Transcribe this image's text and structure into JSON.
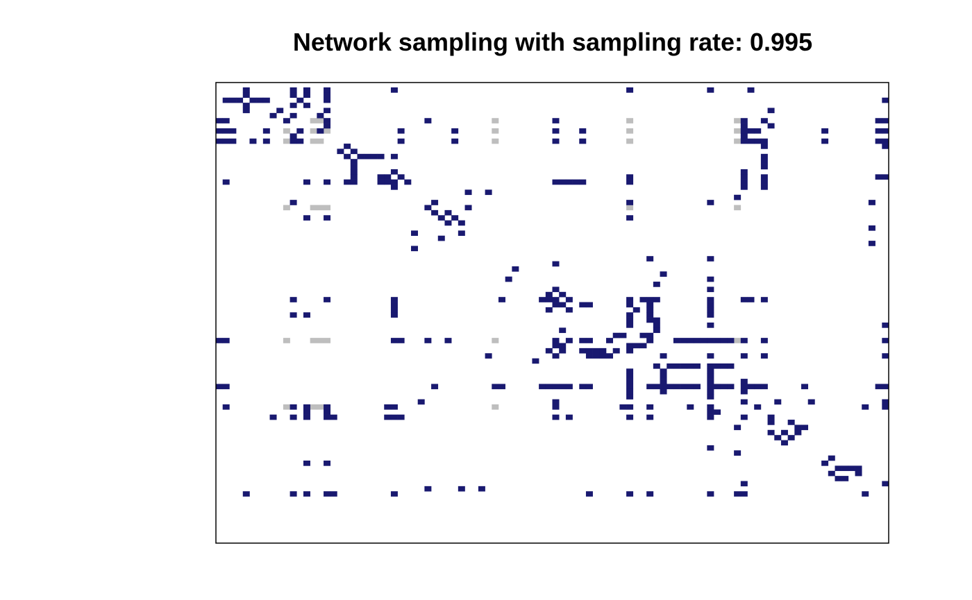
{
  "chart_data": {
    "type": "heatmap",
    "title": "Network sampling with sampling rate: 0.995",
    "xlabel": "",
    "ylabel": "",
    "n": 100,
    "colors": {
      "sampled": "#191970",
      "unsampled": "#bebebe",
      "background": "#ffffff"
    },
    "sampled_edges": [
      [
        0,
        4
      ],
      [
        0,
        11
      ],
      [
        0,
        13
      ],
      [
        0,
        16
      ],
      [
        0,
        26
      ],
      [
        0,
        61
      ],
      [
        0,
        73
      ],
      [
        0,
        79
      ],
      [
        1,
        4
      ],
      [
        1,
        11
      ],
      [
        1,
        13
      ],
      [
        1,
        16
      ],
      [
        2,
        1
      ],
      [
        2,
        2
      ],
      [
        2,
        3
      ],
      [
        2,
        5
      ],
      [
        2,
        6
      ],
      [
        2,
        7
      ],
      [
        2,
        12
      ],
      [
        2,
        16
      ],
      [
        2,
        99
      ],
      [
        3,
        4
      ],
      [
        3,
        11
      ],
      [
        3,
        13
      ],
      [
        4,
        4
      ],
      [
        4,
        9
      ],
      [
        4,
        16
      ],
      [
        4,
        82
      ],
      [
        5,
        8
      ],
      [
        5,
        11
      ],
      [
        5,
        15
      ],
      [
        6,
        0
      ],
      [
        6,
        1
      ],
      [
        6,
        10
      ],
      [
        6,
        16
      ],
      [
        6,
        31
      ],
      [
        6,
        50
      ],
      [
        6,
        78
      ],
      [
        6,
        81
      ],
      [
        6,
        98
      ],
      [
        6,
        99
      ],
      [
        7,
        16
      ],
      [
        7,
        78
      ],
      [
        7,
        82
      ],
      [
        8,
        0
      ],
      [
        8,
        1
      ],
      [
        8,
        2
      ],
      [
        8,
        7
      ],
      [
        8,
        12
      ],
      [
        8,
        15
      ],
      [
        8,
        27
      ],
      [
        8,
        35
      ],
      [
        8,
        50
      ],
      [
        8,
        54
      ],
      [
        8,
        78
      ],
      [
        8,
        79
      ],
      [
        8,
        80
      ],
      [
        8,
        90
      ],
      [
        8,
        98
      ],
      [
        8,
        99
      ],
      [
        9,
        11
      ],
      [
        9,
        78
      ],
      [
        10,
        0
      ],
      [
        10,
        1
      ],
      [
        10,
        2
      ],
      [
        10,
        5
      ],
      [
        10,
        7
      ],
      [
        10,
        11
      ],
      [
        10,
        12
      ],
      [
        10,
        27
      ],
      [
        10,
        35
      ],
      [
        10,
        50
      ],
      [
        10,
        54
      ],
      [
        10,
        78
      ],
      [
        10,
        79
      ],
      [
        10,
        80
      ],
      [
        10,
        81
      ],
      [
        10,
        90
      ],
      [
        10,
        98
      ],
      [
        10,
        99
      ],
      [
        11,
        19
      ],
      [
        11,
        81
      ],
      [
        11,
        99
      ],
      [
        12,
        18
      ],
      [
        12,
        20
      ],
      [
        13,
        19
      ],
      [
        13,
        21
      ],
      [
        13,
        22
      ],
      [
        13,
        23
      ],
      [
        13,
        24
      ],
      [
        13,
        26
      ],
      [
        13,
        81
      ],
      [
        14,
        20
      ],
      [
        14,
        81
      ],
      [
        15,
        20
      ],
      [
        15,
        81
      ],
      [
        16,
        20
      ],
      [
        16,
        26
      ],
      [
        16,
        78
      ],
      [
        17,
        20
      ],
      [
        17,
        24
      ],
      [
        17,
        25
      ],
      [
        17,
        27
      ],
      [
        17,
        61
      ],
      [
        17,
        78
      ],
      [
        17,
        81
      ],
      [
        17,
        98
      ],
      [
        17,
        99
      ],
      [
        18,
        1
      ],
      [
        18,
        13
      ],
      [
        18,
        16
      ],
      [
        18,
        19
      ],
      [
        18,
        20
      ],
      [
        18,
        24
      ],
      [
        18,
        25
      ],
      [
        18,
        26
      ],
      [
        18,
        28
      ],
      [
        18,
        50
      ],
      [
        18,
        51
      ],
      [
        18,
        52
      ],
      [
        18,
        53
      ],
      [
        18,
        54
      ],
      [
        18,
        61
      ],
      [
        18,
        78
      ],
      [
        18,
        81
      ],
      [
        19,
        26
      ],
      [
        19,
        78
      ],
      [
        19,
        81
      ],
      [
        20,
        37
      ],
      [
        20,
        40
      ],
      [
        21,
        77
      ],
      [
        22,
        11
      ],
      [
        22,
        32
      ],
      [
        22,
        61
      ],
      [
        22,
        73
      ],
      [
        22,
        97
      ],
      [
        23,
        31
      ],
      [
        23,
        37
      ],
      [
        24,
        32
      ],
      [
        24,
        34
      ],
      [
        25,
        13
      ],
      [
        25,
        16
      ],
      [
        25,
        33
      ],
      [
        25,
        35
      ],
      [
        25,
        61
      ],
      [
        26,
        34
      ],
      [
        26,
        36
      ],
      [
        27,
        97
      ],
      [
        28,
        29
      ],
      [
        28,
        36
      ],
      [
        29,
        33
      ],
      [
        30,
        97
      ],
      [
        31,
        29
      ],
      [
        33,
        64
      ],
      [
        33,
        73
      ],
      [
        34,
        50
      ],
      [
        35,
        44
      ],
      [
        36,
        66
      ],
      [
        37,
        43
      ],
      [
        37,
        73
      ],
      [
        38,
        65
      ],
      [
        39,
        50
      ],
      [
        39,
        73
      ],
      [
        40,
        49
      ],
      [
        40,
        51
      ],
      [
        41,
        11
      ],
      [
        41,
        16
      ],
      [
        41,
        26
      ],
      [
        41,
        42
      ],
      [
        41,
        48
      ],
      [
        41,
        49
      ],
      [
        41,
        50
      ],
      [
        41,
        52
      ],
      [
        41,
        61
      ],
      [
        41,
        63
      ],
      [
        41,
        64
      ],
      [
        41,
        65
      ],
      [
        41,
        73
      ],
      [
        41,
        78
      ],
      [
        41,
        79
      ],
      [
        41,
        81
      ],
      [
        42,
        26
      ],
      [
        42,
        50
      ],
      [
        42,
        51
      ],
      [
        42,
        54
      ],
      [
        42,
        55
      ],
      [
        42,
        61
      ],
      [
        42,
        64
      ],
      [
        42,
        73
      ],
      [
        43,
        26
      ],
      [
        43,
        49
      ],
      [
        43,
        52
      ],
      [
        43,
        62
      ],
      [
        43,
        64
      ],
      [
        43,
        73
      ],
      [
        44,
        11
      ],
      [
        44,
        13
      ],
      [
        44,
        26
      ],
      [
        44,
        61
      ],
      [
        44,
        64
      ],
      [
        44,
        73
      ],
      [
        45,
        61
      ],
      [
        45,
        64
      ],
      [
        45,
        65
      ],
      [
        46,
        61
      ],
      [
        46,
        65
      ],
      [
        46,
        73
      ],
      [
        46,
        99
      ],
      [
        47,
        51
      ],
      [
        47,
        65
      ],
      [
        48,
        59
      ],
      [
        48,
        60
      ],
      [
        48,
        63
      ],
      [
        48,
        64
      ],
      [
        49,
        0
      ],
      [
        49,
        1
      ],
      [
        49,
        26
      ],
      [
        49,
        27
      ],
      [
        49,
        31
      ],
      [
        49,
        34
      ],
      [
        49,
        50
      ],
      [
        49,
        52
      ],
      [
        49,
        54
      ],
      [
        49,
        55
      ],
      [
        49,
        58
      ],
      [
        49,
        64
      ],
      [
        49,
        68
      ],
      [
        49,
        69
      ],
      [
        49,
        70
      ],
      [
        49,
        71
      ],
      [
        49,
        72
      ],
      [
        49,
        73
      ],
      [
        49,
        74
      ],
      [
        49,
        75
      ],
      [
        49,
        76
      ],
      [
        49,
        78
      ],
      [
        49,
        81
      ],
      [
        49,
        99
      ],
      [
        50,
        50
      ],
      [
        50,
        51
      ],
      [
        50,
        61
      ],
      [
        50,
        62
      ],
      [
        50,
        63
      ],
      [
        51,
        49
      ],
      [
        51,
        51
      ],
      [
        51,
        54
      ],
      [
        51,
        55
      ],
      [
        51,
        56
      ],
      [
        51,
        57
      ],
      [
        51,
        59
      ],
      [
        51,
        61
      ],
      [
        52,
        40
      ],
      [
        52,
        50
      ],
      [
        52,
        55
      ],
      [
        52,
        56
      ],
      [
        52,
        57
      ],
      [
        52,
        58
      ],
      [
        52,
        66
      ],
      [
        52,
        73
      ],
      [
        52,
        78
      ],
      [
        52,
        81
      ],
      [
        52,
        99
      ],
      [
        53,
        47
      ],
      [
        54,
        65
      ],
      [
        54,
        67
      ],
      [
        54,
        68
      ],
      [
        54,
        69
      ],
      [
        54,
        70
      ],
      [
        54,
        71
      ],
      [
        54,
        73
      ],
      [
        54,
        74
      ],
      [
        54,
        75
      ],
      [
        54,
        76
      ],
      [
        55,
        61
      ],
      [
        55,
        66
      ],
      [
        55,
        73
      ],
      [
        56,
        61
      ],
      [
        56,
        66
      ],
      [
        56,
        73
      ],
      [
        57,
        61
      ],
      [
        57,
        66
      ],
      [
        57,
        73
      ],
      [
        57,
        78
      ],
      [
        58,
        0
      ],
      [
        58,
        1
      ],
      [
        58,
        32
      ],
      [
        58,
        41
      ],
      [
        58,
        42
      ],
      [
        58,
        48
      ],
      [
        58,
        49
      ],
      [
        58,
        50
      ],
      [
        58,
        51
      ],
      [
        58,
        52
      ],
      [
        58,
        54
      ],
      [
        58,
        55
      ],
      [
        58,
        61
      ],
      [
        58,
        64
      ],
      [
        58,
        65
      ],
      [
        58,
        66
      ],
      [
        58,
        67
      ],
      [
        58,
        68
      ],
      [
        58,
        69
      ],
      [
        58,
        70
      ],
      [
        58,
        71
      ],
      [
        58,
        73
      ],
      [
        58,
        74
      ],
      [
        58,
        75
      ],
      [
        58,
        76
      ],
      [
        58,
        78
      ],
      [
        58,
        79
      ],
      [
        58,
        80
      ],
      [
        58,
        81
      ],
      [
        58,
        87
      ],
      [
        58,
        98
      ],
      [
        58,
        99
      ],
      [
        59,
        61
      ],
      [
        59,
        66
      ],
      [
        59,
        73
      ],
      [
        59,
        78
      ],
      [
        60,
        61
      ],
      [
        60,
        73
      ],
      [
        61,
        30
      ],
      [
        61,
        50
      ],
      [
        61,
        78
      ],
      [
        61,
        83
      ],
      [
        61,
        88
      ],
      [
        61,
        99
      ],
      [
        62,
        1
      ],
      [
        62,
        11
      ],
      [
        62,
        13
      ],
      [
        62,
        16
      ],
      [
        62,
        25
      ],
      [
        62,
        26
      ],
      [
        62,
        50
      ],
      [
        62,
        60
      ],
      [
        62,
        61
      ],
      [
        62,
        64
      ],
      [
        62,
        70
      ],
      [
        62,
        73
      ],
      [
        62,
        80
      ],
      [
        62,
        96
      ],
      [
        62,
        99
      ],
      [
        63,
        13
      ],
      [
        63,
        16
      ],
      [
        63,
        73
      ],
      [
        63,
        74
      ],
      [
        64,
        8
      ],
      [
        64,
        11
      ],
      [
        64,
        13
      ],
      [
        64,
        16
      ],
      [
        64,
        17
      ],
      [
        64,
        25
      ],
      [
        64,
        26
      ],
      [
        64,
        27
      ],
      [
        64,
        50
      ],
      [
        64,
        52
      ],
      [
        64,
        61
      ],
      [
        64,
        64
      ],
      [
        64,
        73
      ],
      [
        64,
        78
      ],
      [
        64,
        82
      ],
      [
        65,
        82
      ],
      [
        65,
        85
      ],
      [
        66,
        77
      ],
      [
        66,
        86
      ],
      [
        66,
        87
      ],
      [
        67,
        82
      ],
      [
        67,
        84
      ],
      [
        67,
        86
      ],
      [
        68,
        83
      ],
      [
        68,
        85
      ],
      [
        69,
        84
      ],
      [
        70,
        73
      ],
      [
        71,
        77
      ],
      [
        72,
        91
      ],
      [
        73,
        13
      ],
      [
        73,
        16
      ],
      [
        73,
        90
      ],
      [
        74,
        92
      ],
      [
        74,
        93
      ],
      [
        74,
        94
      ],
      [
        74,
        95
      ],
      [
        75,
        91
      ],
      [
        75,
        95
      ],
      [
        76,
        92
      ],
      [
        76,
        93
      ],
      [
        77,
        78
      ],
      [
        77,
        99
      ],
      [
        78,
        31
      ],
      [
        78,
        36
      ],
      [
        78,
        39
      ],
      [
        79,
        4
      ],
      [
        79,
        11
      ],
      [
        79,
        13
      ],
      [
        79,
        16
      ],
      [
        79,
        17
      ],
      [
        79,
        26
      ],
      [
        79,
        55
      ],
      [
        79,
        61
      ],
      [
        79,
        64
      ],
      [
        79,
        73
      ],
      [
        79,
        77
      ],
      [
        79,
        78
      ],
      [
        79,
        96
      ]
    ],
    "unsampled_edges": [
      [
        6,
        14
      ],
      [
        6,
        15
      ],
      [
        6,
        16
      ],
      [
        6,
        41
      ],
      [
        6,
        61
      ],
      [
        6,
        77
      ],
      [
        8,
        10
      ],
      [
        8,
        14
      ],
      [
        8,
        15
      ],
      [
        8,
        16
      ],
      [
        8,
        41
      ],
      [
        8,
        61
      ],
      [
        8,
        77
      ],
      [
        10,
        10
      ],
      [
        10,
        14
      ],
      [
        10,
        15
      ],
      [
        10,
        41
      ],
      [
        10,
        61
      ],
      [
        10,
        77
      ],
      [
        23,
        10
      ],
      [
        23,
        14
      ],
      [
        23,
        15
      ],
      [
        23,
        16
      ],
      [
        23,
        61
      ],
      [
        23,
        77
      ],
      [
        49,
        10
      ],
      [
        49,
        14
      ],
      [
        49,
        15
      ],
      [
        49,
        16
      ],
      [
        49,
        41
      ],
      [
        49,
        77
      ],
      [
        62,
        10
      ],
      [
        62,
        14
      ],
      [
        62,
        15
      ],
      [
        62,
        41
      ],
      [
        62,
        61
      ]
    ]
  }
}
